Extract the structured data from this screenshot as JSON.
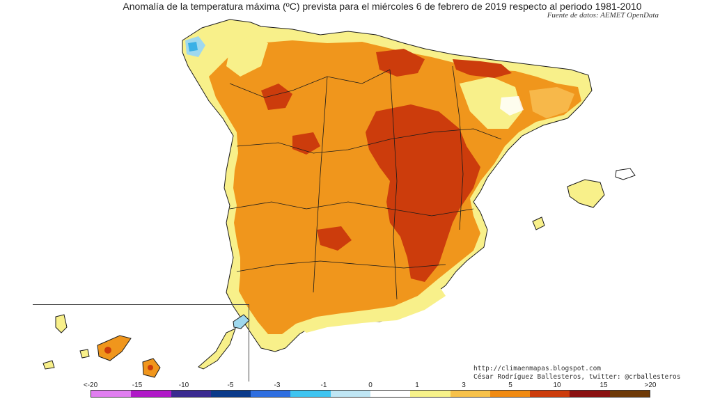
{
  "header": {
    "title": "Anomalía de la temperatura máxima (ºC) prevista para el miércoles 6 de febrero de 2019 respecto al periodo 1981-2010",
    "source": "Fuente de datos: AEMET OpenData"
  },
  "credits": {
    "blog": "http://climaenmapas.blogspot.com",
    "author": "César Rodríguez Ballesteros, twitter: @crballesteros"
  },
  "legend": {
    "ticks": [
      "<-20",
      "-15",
      "-10",
      "-5",
      "-3",
      "-1",
      "0",
      "1",
      "3",
      "5",
      "10",
      "15",
      ">20"
    ],
    "colors": [
      "#e07ef0",
      "#b018c8",
      "#3a2a90",
      "#0a3a8a",
      "#2e6ee0",
      "#3ec4f0",
      "#bfe6f4",
      "#ffffff",
      "#f6f28a",
      "#f7c14a",
      "#f08a12",
      "#cc3c0c",
      "#8a1010",
      "#6e3a08"
    ]
  },
  "map": {
    "palette": {
      "sea": "#ffffff",
      "border": "#1a1a1a",
      "anom_0_1": "#ffffff",
      "anom_1_3": "#f8f08a",
      "anom_3_5": "#f7b84a",
      "anom_5_10": "#f08a12",
      "anom_10_15": "#cc3c0c",
      "anom_cold": "#9fd8ee",
      "anom_cold_strong": "#3ab0e6"
    }
  }
}
